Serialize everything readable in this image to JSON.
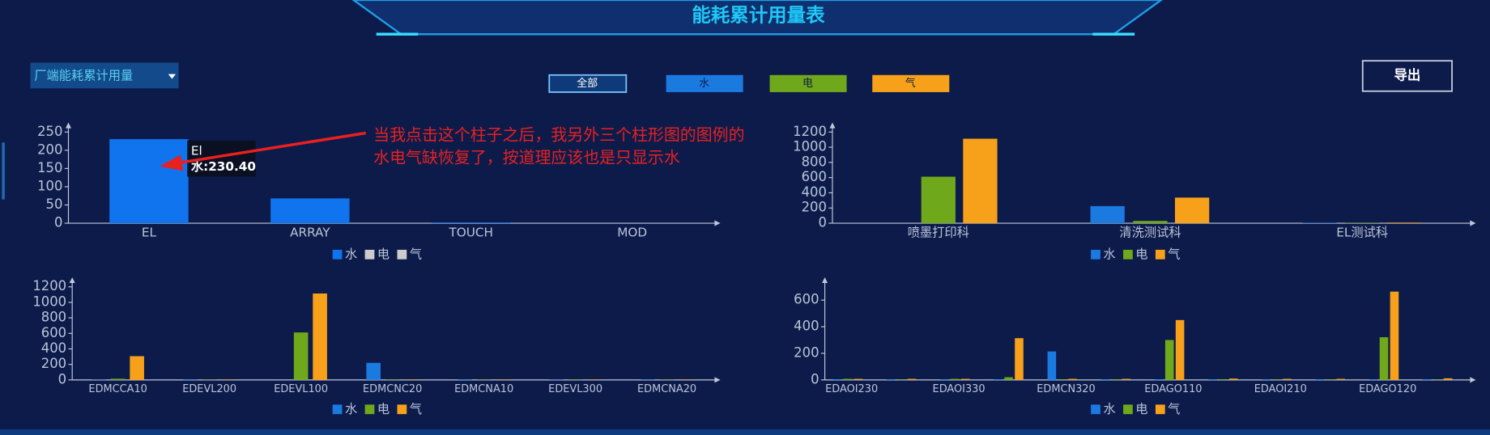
{
  "header": {
    "title": "能耗累计用量表"
  },
  "controls": {
    "dropdown": "厂端能耗累计用量",
    "filters": [
      "全部",
      "水",
      "电",
      "气"
    ],
    "export": "导出"
  },
  "annotation": {
    "lines": [
      "当我点击这个柱子之后，我另外三个柱形图的图例的",
      "水电气缺恢复了，按道理应该也是只显示水"
    ]
  },
  "chart_data": [
    {
      "type": "bar",
      "categories": [
        "EL",
        "ARRAY",
        "TOUCH",
        "MOD"
      ],
      "series": [
        {
          "name": "水",
          "color": "#0f74ee",
          "values": [
            230.4,
            68,
            2,
            0
          ]
        },
        {
          "name": "电",
          "color": "#cccccc",
          "values": [
            null,
            null,
            null,
            null
          ]
        },
        {
          "name": "气",
          "color": "#cccccc",
          "values": [
            null,
            null,
            null,
            null
          ]
        }
      ],
      "ylim": [
        0,
        250
      ],
      "yticks": [
        0,
        50,
        100,
        150,
        200,
        250
      ],
      "tooltip": {
        "title": "El",
        "text": "水:230.40"
      }
    },
    {
      "type": "bar",
      "categories": [
        "喷墨打印科",
        "清洗测试科",
        "EL测试科"
      ],
      "series": [
        {
          "name": "水",
          "color": "#1a7ae0",
          "values": [
            0,
            225,
            5
          ]
        },
        {
          "name": "电",
          "color": "#6fa81a",
          "values": [
            612,
            30,
            5
          ]
        },
        {
          "name": "气",
          "color": "#f7a11a",
          "values": [
            1112,
            337,
            8
          ]
        }
      ],
      "ylim": [
        0,
        1200
      ],
      "yticks": [
        0,
        200,
        400,
        600,
        800,
        1000,
        1200
      ]
    },
    {
      "type": "bar",
      "categories": [
        "EDMCCA10",
        "EDEVL200",
        "EDEVL100",
        "EDMCNC20",
        "EDMCNA10",
        "EDEVL300",
        "EDMCNA20"
      ],
      "series": [
        {
          "name": "水",
          "color": "#1a7ae0",
          "values": [
            5,
            5,
            0,
            220,
            5,
            5,
            5
          ]
        },
        {
          "name": "电",
          "color": "#6fa81a",
          "values": [
            15,
            5,
            612,
            5,
            5,
            5,
            5
          ]
        },
        {
          "name": "气",
          "color": "#f7a11a",
          "values": [
            306,
            5,
            1114,
            5,
            5,
            5,
            5
          ]
        }
      ],
      "ylim": [
        0,
        1200
      ],
      "yticks": [
        0,
        200,
        400,
        600,
        800,
        1000,
        1200
      ]
    },
    {
      "type": "bar",
      "categories": [
        "EDAOI230",
        null,
        "EDAOI330",
        null,
        "EDMCN320",
        null,
        "EDAGO110",
        null,
        "EDAOI210",
        null,
        "EDAGO120",
        null
      ],
      "series": [
        {
          "name": "水",
          "color": "#1a7ae0",
          "values": [
            5,
            5,
            5,
            5,
            214,
            5,
            5,
            5,
            5,
            5,
            5,
            5
          ]
        },
        {
          "name": "电",
          "color": "#6fa81a",
          "values": [
            8,
            5,
            8,
            20,
            5,
            5,
            300,
            5,
            5,
            5,
            321,
            5
          ]
        },
        {
          "name": "气",
          "color": "#f7a11a",
          "values": [
            8,
            8,
            8,
            314,
            8,
            8,
            450,
            10,
            8,
            8,
            664,
            12
          ]
        }
      ],
      "ylim": [
        0,
        700
      ],
      "yticks": [
        0,
        200,
        400,
        600
      ]
    }
  ]
}
